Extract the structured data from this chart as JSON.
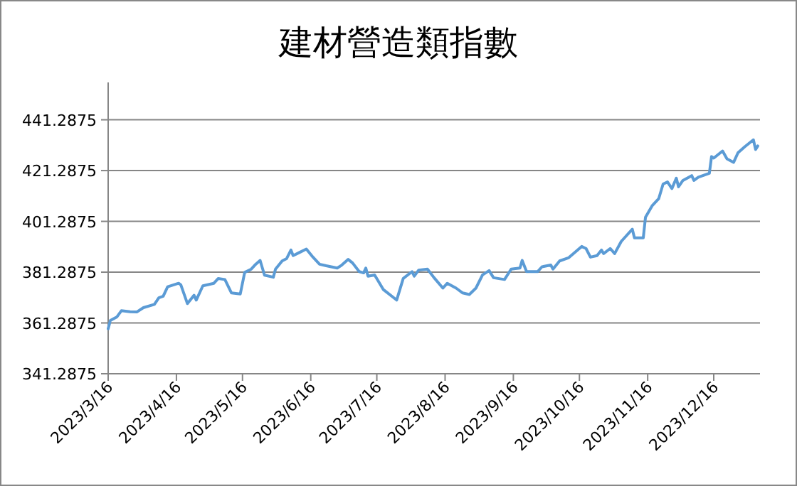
{
  "chart_data": {
    "type": "line",
    "title": "建材營造類指數",
    "x": [
      "2023-03-16",
      "2023-03-17",
      "2023-03-20",
      "2023-03-22",
      "2023-03-26",
      "2023-03-29",
      "2023-04-01",
      "2023-04-06",
      "2023-04-08",
      "2023-04-10",
      "2023-04-12",
      "2023-04-17",
      "2023-04-18",
      "2023-04-21",
      "2023-04-24",
      "2023-04-25",
      "2023-04-28",
      "2023-05-03",
      "2023-05-05",
      "2023-05-08",
      "2023-05-11",
      "2023-05-15",
      "2023-05-17",
      "2023-05-20",
      "2023-05-22",
      "2023-05-24",
      "2023-05-26",
      "2023-05-30",
      "2023-05-31",
      "2023-06-03",
      "2023-06-05",
      "2023-06-07",
      "2023-06-08",
      "2023-06-11",
      "2023-06-14",
      "2023-06-17",
      "2023-06-20",
      "2023-06-23",
      "2023-06-28",
      "2023-06-30",
      "2023-07-03",
      "2023-07-05",
      "2023-07-08",
      "2023-07-10",
      "2023-07-11",
      "2023-07-12",
      "2023-07-15",
      "2023-07-19",
      "2023-07-25",
      "2023-07-28",
      "2023-08-01",
      "2023-08-02",
      "2023-08-04",
      "2023-08-08",
      "2023-08-11",
      "2023-08-15",
      "2023-08-17",
      "2023-08-21",
      "2023-08-24",
      "2023-08-27",
      "2023-08-30",
      "2023-09-02",
      "2023-09-05",
      "2023-09-07",
      "2023-09-12",
      "2023-09-15",
      "2023-09-19",
      "2023-09-20",
      "2023-09-22",
      "2023-09-27",
      "2023-09-29",
      "2023-10-03",
      "2023-10-04",
      "2023-10-07",
      "2023-10-11",
      "2023-10-17",
      "2023-10-19",
      "2023-10-21",
      "2023-10-24",
      "2023-10-26",
      "2023-10-27",
      "2023-10-30",
      "2023-11-01",
      "2023-11-04",
      "2023-11-09",
      "2023-11-10",
      "2023-11-14",
      "2023-11-15",
      "2023-11-18",
      "2023-11-21",
      "2023-11-23",
      "2023-11-25",
      "2023-11-27",
      "2023-11-29",
      "2023-11-30",
      "2023-12-02",
      "2023-12-06",
      "2023-12-07",
      "2023-12-09",
      "2023-12-14",
      "2023-12-15",
      "2023-12-16",
      "2023-12-20",
      "2023-12-22",
      "2023-12-25",
      "2023-12-27",
      "2023-12-30",
      "2024-01-03",
      "2024-01-04",
      "2024-01-05"
    ],
    "series": [
      {
        "color": "#5b9bd5",
        "values": [
          359.0,
          362.3,
          363.7,
          366.1,
          365.7,
          365.6,
          367.3,
          368.6,
          371.2,
          371.8,
          375.5,
          376.9,
          376.3,
          368.9,
          372.2,
          370.3,
          375.9,
          376.9,
          378.8,
          378.4,
          373.1,
          372.7,
          381.2,
          382.5,
          384.4,
          385.9,
          380.1,
          379.3,
          382.5,
          385.7,
          386.6,
          390.0,
          387.8,
          389.1,
          390.4,
          387.2,
          384.4,
          383.8,
          382.9,
          384.0,
          386.3,
          384.9,
          381.5,
          381.0,
          382.9,
          379.7,
          380.2,
          374.4,
          370.3,
          378.8,
          381.5,
          379.7,
          382.1,
          382.5,
          379.1,
          375.0,
          376.9,
          375.0,
          373.1,
          372.5,
          375.0,
          380.2,
          381.9,
          379.1,
          378.4,
          382.5,
          382.9,
          385.9,
          381.5,
          381.5,
          383.4,
          384.1,
          382.5,
          385.7,
          386.9,
          391.4,
          390.6,
          387.2,
          387.8,
          390.0,
          388.6,
          390.6,
          388.6,
          393.4,
          398.2,
          394.8,
          394.8,
          402.9,
          407.4,
          410.2,
          416.0,
          416.8,
          414.2,
          418.3,
          414.9,
          417.4,
          419.3,
          417.4,
          418.7,
          420.2,
          426.8,
          426.2,
          429.0,
          425.9,
          424.5,
          428.3,
          430.6,
          433.4,
          429.6,
          431.0
        ]
      }
    ],
    "xlim": [
      "2023-03-16",
      "2024-01-06"
    ],
    "xticks": [
      {
        "value": "2023-03-16",
        "label": "2023/3/16"
      },
      {
        "value": "2023-04-16",
        "label": "2023/4/16"
      },
      {
        "value": "2023-05-16",
        "label": "2023/5/16"
      },
      {
        "value": "2023-06-16",
        "label": "2023/6/16"
      },
      {
        "value": "2023-07-16",
        "label": "2023/7/16"
      },
      {
        "value": "2023-08-16",
        "label": "2023/8/16"
      },
      {
        "value": "2023-09-16",
        "label": "2023/9/16"
      },
      {
        "value": "2023-10-16",
        "label": "2023/10/16"
      },
      {
        "value": "2023-11-16",
        "label": "2023/11/16"
      },
      {
        "value": "2023-12-16",
        "label": "2023/12/16"
      }
    ],
    "ylim": [
      341.2875,
      456
    ],
    "yticks": [
      341.2875,
      361.2875,
      381.2875,
      401.2875,
      421.2875,
      441.2875
    ],
    "grid": "y",
    "marker": "none",
    "line_style": "solid"
  }
}
